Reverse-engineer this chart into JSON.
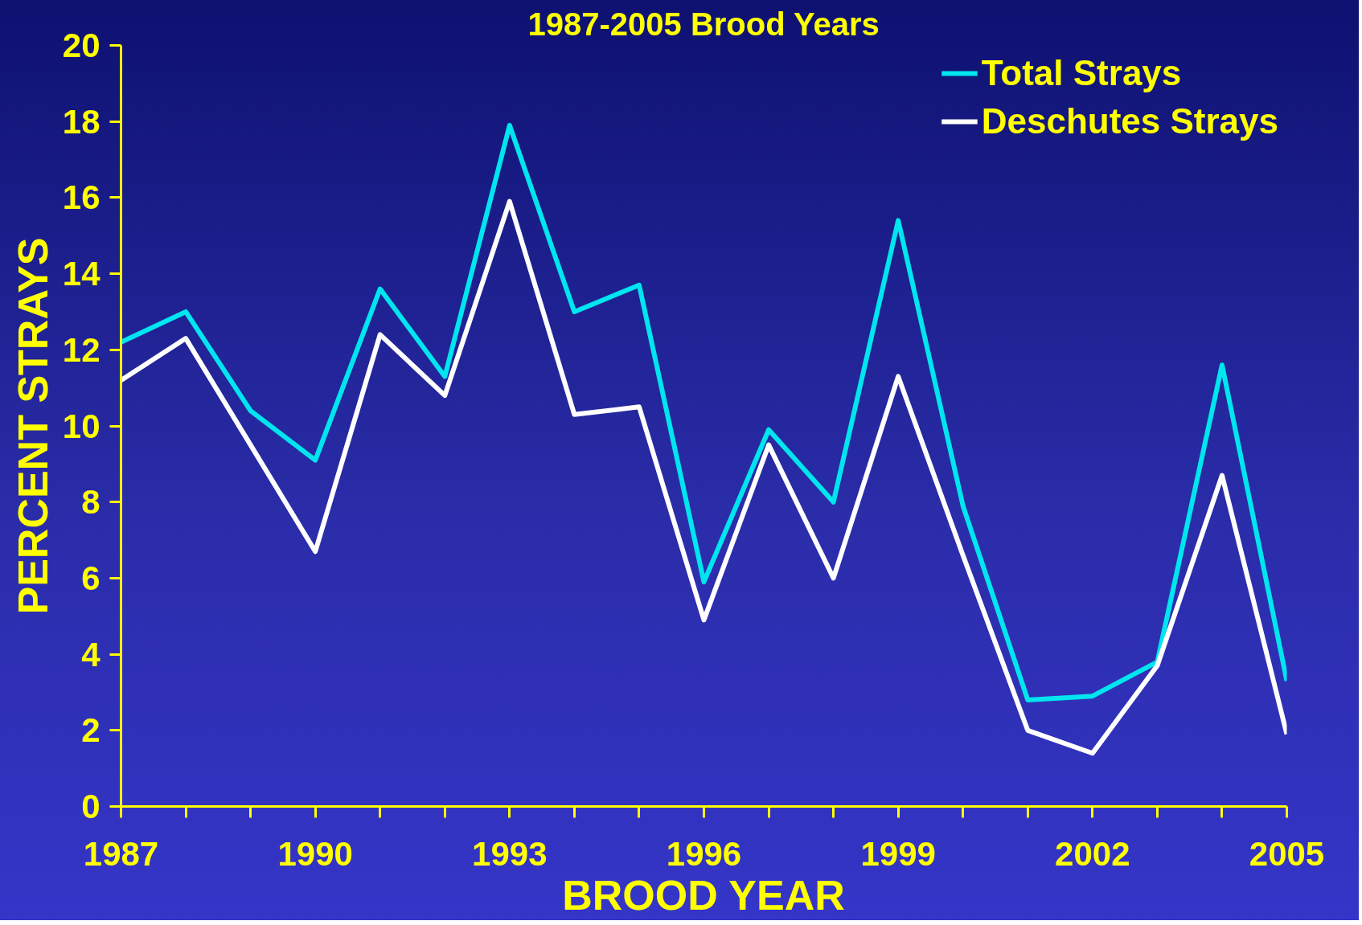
{
  "chart_data": {
    "type": "line",
    "title": "1987-2005 Brood Years",
    "xlabel": "BROOD YEAR",
    "ylabel": "PERCENT STRAYS",
    "x": [
      1987,
      1988,
      1989,
      1990,
      1991,
      1992,
      1993,
      1994,
      1995,
      1996,
      1997,
      1998,
      1999,
      2000,
      2001,
      2002,
      2003,
      2004,
      2005
    ],
    "series": [
      {
        "name": "Total Strays",
        "color": "#00e5ee",
        "values": [
          12.2,
          13.0,
          10.4,
          9.1,
          13.6,
          11.3,
          17.9,
          13.0,
          13.7,
          5.9,
          9.9,
          8.0,
          15.4,
          7.9,
          2.8,
          2.9,
          3.8,
          11.6,
          3.3
        ]
      },
      {
        "name": "Deschutes Strays",
        "color": "#ffffff",
        "values": [
          11.2,
          12.3,
          9.5,
          6.7,
          12.4,
          10.8,
          15.9,
          10.3,
          10.5,
          4.9,
          9.5,
          6.0,
          11.3,
          6.6,
          2.0,
          1.4,
          3.7,
          8.7,
          1.9
        ]
      }
    ],
    "xlim": [
      1987,
      2005
    ],
    "xticks": [
      1987,
      {
        "value": 1988,
        "label": null
      },
      {
        "value": 1989,
        "label": null
      },
      1990,
      {
        "value": 1991,
        "label": null
      },
      {
        "value": 1992,
        "label": null
      },
      1993,
      {
        "value": 1994,
        "label": null
      },
      {
        "value": 1995,
        "label": null
      },
      1996,
      {
        "value": 1997,
        "label": null
      },
      {
        "value": 1998,
        "label": null
      },
      1999,
      {
        "value": 2000,
        "label": null
      },
      {
        "value": 2001,
        "label": null
      },
      2002,
      {
        "value": 2003,
        "label": null
      },
      {
        "value": 2004,
        "label": null
      },
      2005
    ],
    "ylim": [
      0,
      20
    ],
    "yticks": [
      0,
      2,
      4,
      6,
      8,
      10,
      12,
      14,
      16,
      18,
      20
    ],
    "grid": false,
    "legend": "top right",
    "line_style": "solid",
    "marker": "none"
  }
}
